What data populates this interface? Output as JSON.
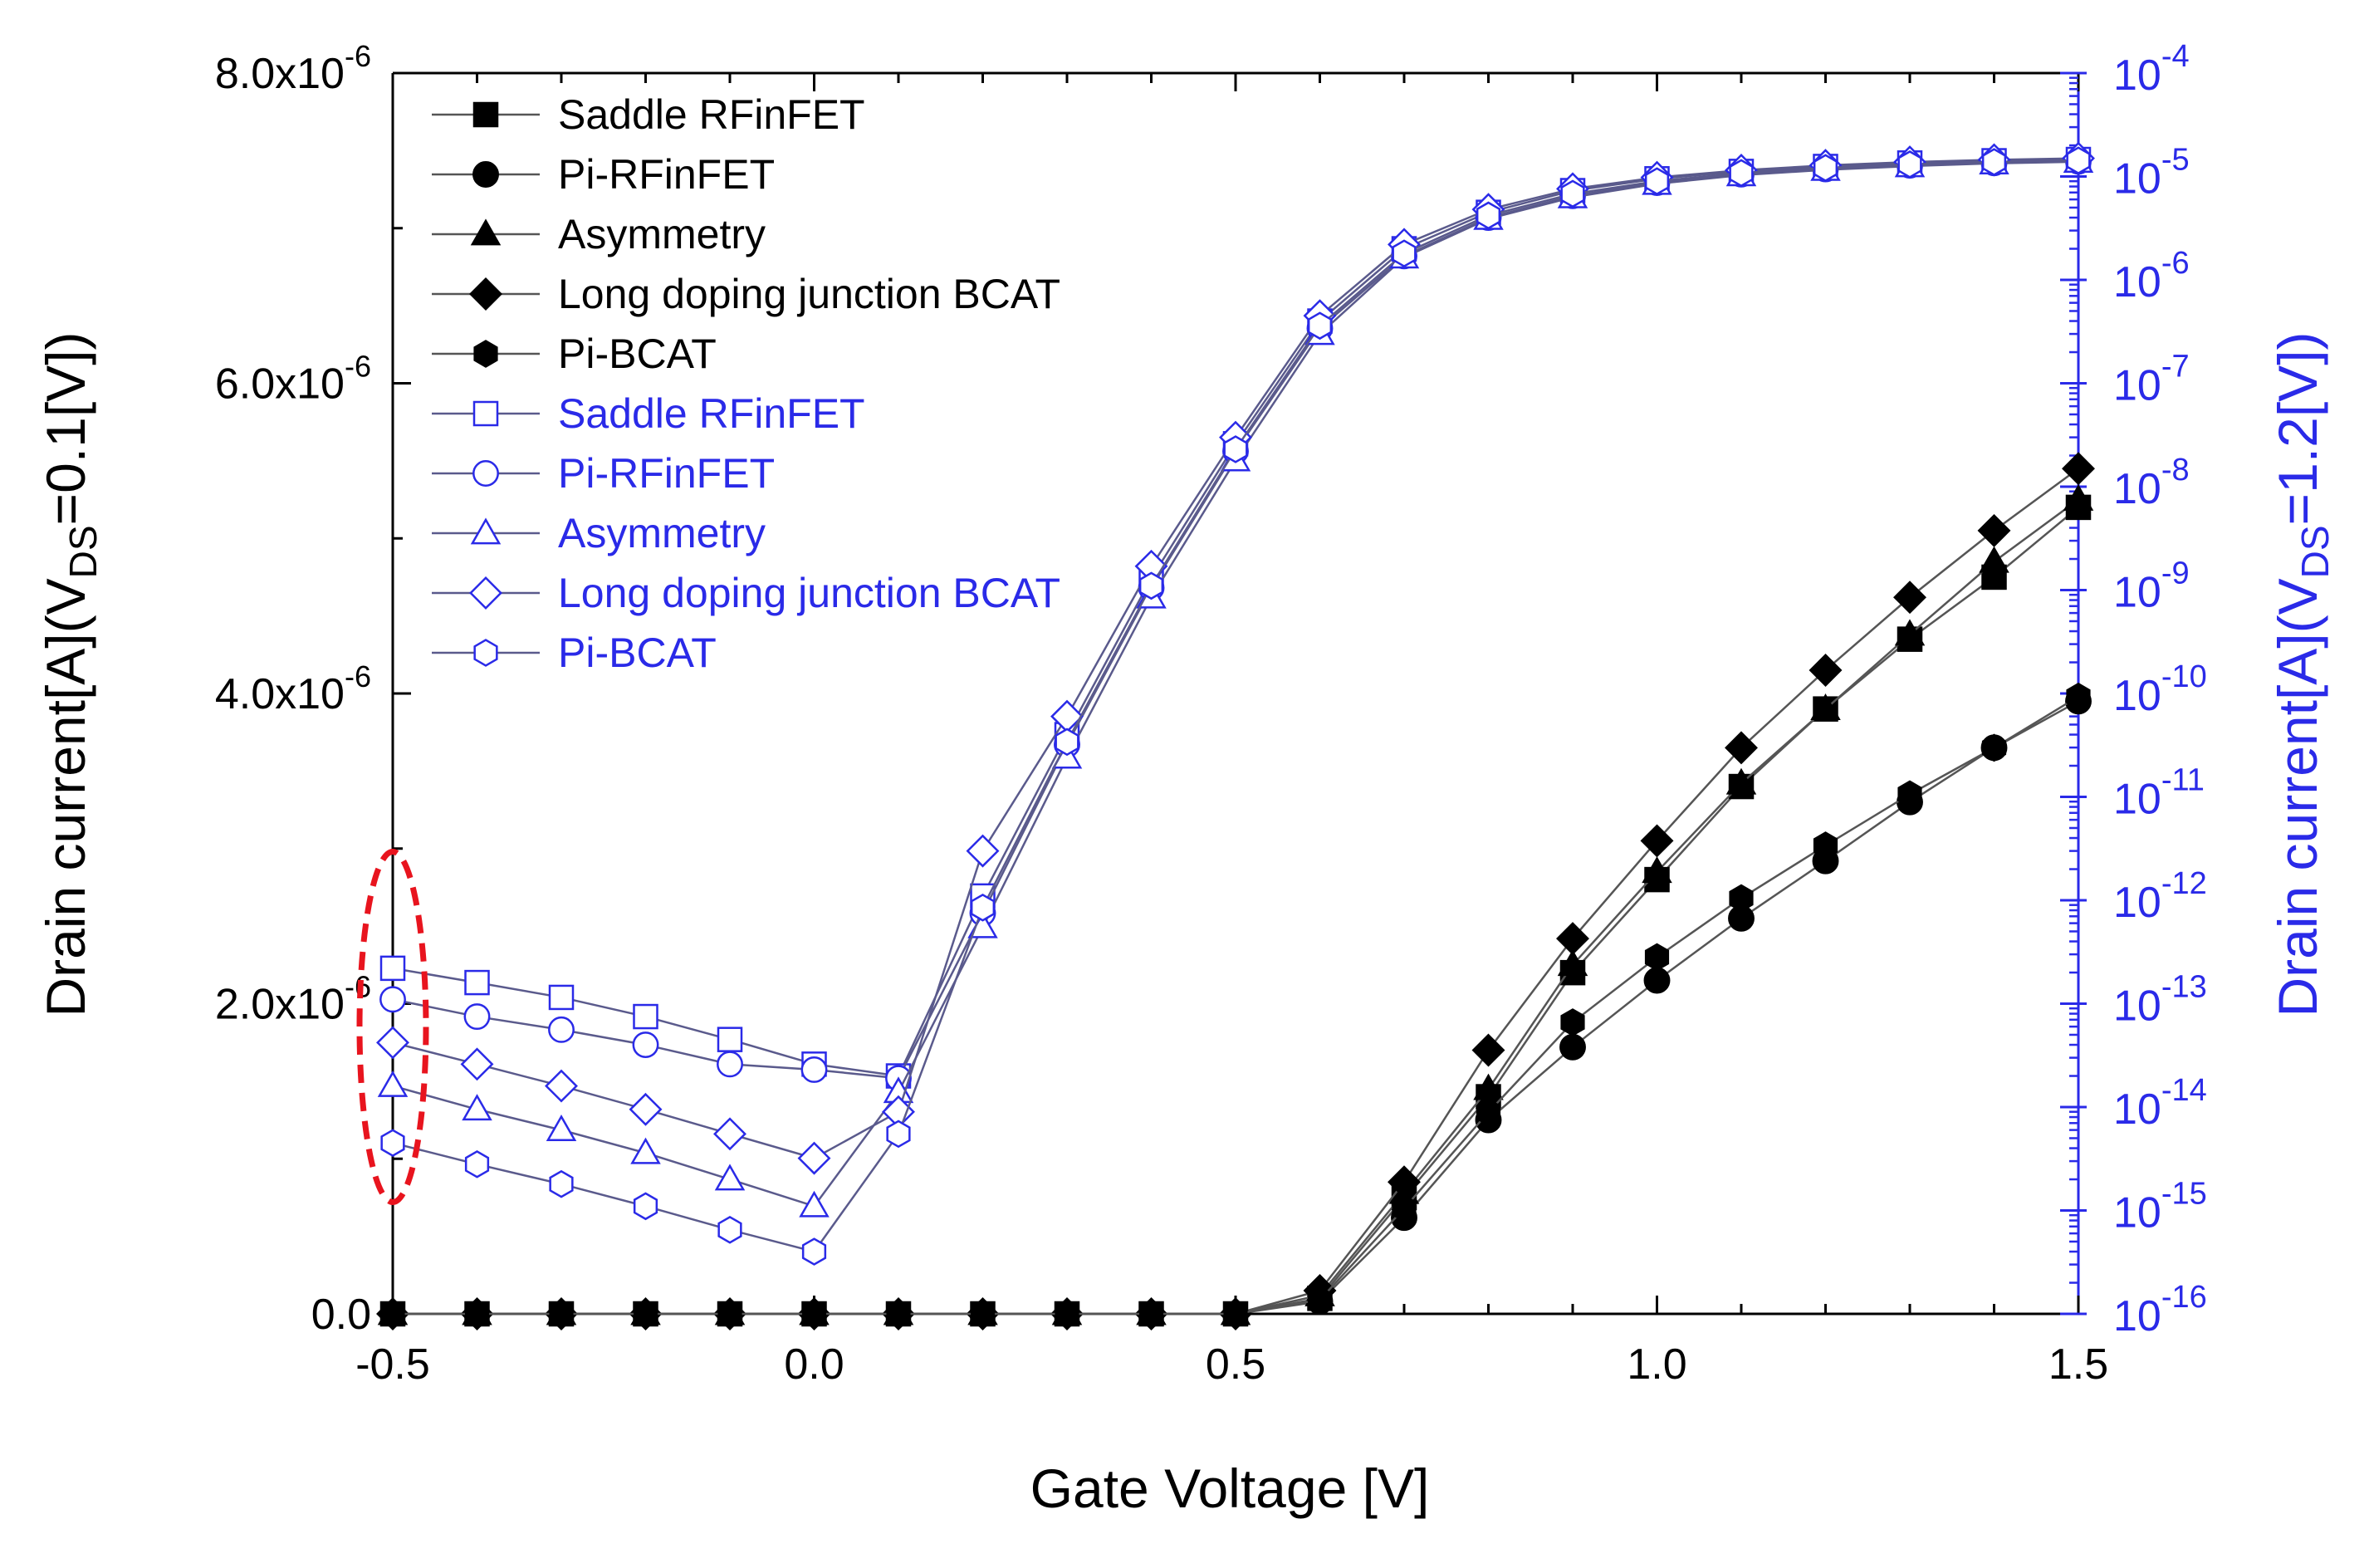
{
  "chart_data": {
    "type": "line",
    "xlabel": "Gate Voltage [V]",
    "ylabel_left": {
      "main": "Drain current[A](V",
      "sub": "DS",
      "tail": "=0.1[V])"
    },
    "ylabel_right": {
      "main": "Drain current[A](V",
      "sub": "DS",
      "tail": "=1.2[V])"
    },
    "x_range": [
      -0.5,
      1.5
    ],
    "x_ticks": [
      {
        "value": -0.5,
        "label": "-0.5"
      },
      {
        "value": 0.0,
        "label": "0.0"
      },
      {
        "value": 0.5,
        "label": "0.5"
      },
      {
        "value": 1.0,
        "label": "1.0"
      },
      {
        "value": 1.5,
        "label": "1.5"
      }
    ],
    "y_left_range": [
      0,
      8e-06
    ],
    "y_left_ticks": [
      {
        "value": 0,
        "base": "0.0",
        "exp": ""
      },
      {
        "value": 2e-06,
        "base": "2.0x10",
        "exp": "-6"
      },
      {
        "value": 4e-06,
        "base": "4.0x10",
        "exp": "-6"
      },
      {
        "value": 6e-06,
        "base": "6.0x10",
        "exp": "-6"
      },
      {
        "value": 8e-06,
        "base": "8.0x10",
        "exp": "-6"
      }
    ],
    "y_right_scale": "log",
    "y_right_range": [
      1e-16,
      0.0001
    ],
    "y_right_ticks": [
      {
        "exp": -16,
        "base": "10",
        "label": "-16"
      },
      {
        "exp": -15,
        "base": "10",
        "label": "-15"
      },
      {
        "exp": -14,
        "base": "10",
        "label": "-14"
      },
      {
        "exp": -13,
        "base": "10",
        "label": "-13"
      },
      {
        "exp": -12,
        "base": "10",
        "label": "-12"
      },
      {
        "exp": -11,
        "base": "10",
        "label": "-11"
      },
      {
        "exp": -10,
        "base": "10",
        "label": "-10"
      },
      {
        "exp": -9,
        "base": "10",
        "label": "-9"
      },
      {
        "exp": -8,
        "base": "10",
        "label": "-8"
      },
      {
        "exp": -7,
        "base": "10",
        "label": "-7"
      },
      {
        "exp": -6,
        "base": "10",
        "label": "-6"
      },
      {
        "exp": -5,
        "base": "10",
        "label": "-5"
      },
      {
        "exp": -4,
        "base": "10",
        "label": "-4"
      }
    ],
    "grid": false,
    "legend_position": "top-left",
    "colors": {
      "linear": "#000000",
      "log": "#2a2ae8",
      "line": "#555555",
      "annotation": "#e8141e",
      "right_axis": "#2a2ae8"
    },
    "annotation": {
      "shape": "dashed-ellipse",
      "x": -0.5,
      "y_left_range": [
        7.2e-07,
        2.98e-06
      ]
    },
    "x": [
      -0.5,
      -0.4,
      -0.3,
      -0.2,
      -0.1,
      0.0,
      0.1,
      0.2,
      0.3,
      0.4,
      0.5,
      0.6,
      0.7,
      0.8,
      0.9,
      1.0,
      1.1,
      1.2,
      1.3,
      1.4,
      1.5
    ],
    "series": [
      {
        "name": "Saddle RFinFET",
        "axis": "left",
        "marker": "square",
        "fill": "filled",
        "y": [
          0,
          0,
          0,
          0,
          0,
          0,
          0,
          0,
          0,
          0,
          0,
          1e-07,
          7.5e-07,
          1.4e-06,
          2.2e-06,
          2.8e-06,
          3.4e-06,
          3.9e-06,
          4.35e-06,
          4.75e-06,
          5.2e-06
        ]
      },
      {
        "name": "Pi-RFinFET",
        "axis": "left",
        "marker": "circle",
        "fill": "filled",
        "y": [
          0,
          0,
          0,
          0,
          0,
          0,
          0,
          0,
          0,
          0,
          0,
          8e-08,
          6.2e-07,
          1.25e-06,
          1.72e-06,
          2.15e-06,
          2.55e-06,
          2.92e-06,
          3.3e-06,
          3.65e-06,
          3.95e-06
        ]
      },
      {
        "name": "Asymmetry",
        "axis": "left",
        "marker": "triangle",
        "fill": "filled",
        "y": [
          0,
          0,
          0,
          0,
          0,
          0,
          0,
          0,
          0,
          0,
          0,
          1.2e-07,
          7.8e-07,
          1.45e-06,
          2.25e-06,
          2.85e-06,
          3.42e-06,
          3.9e-06,
          4.38e-06,
          4.85e-06,
          5.25e-06
        ]
      },
      {
        "name": "Long doping junction BCAT",
        "axis": "left",
        "marker": "diamond",
        "fill": "filled",
        "y": [
          0,
          0,
          0,
          0,
          0,
          0,
          0,
          0,
          0,
          0,
          0,
          1.5e-07,
          8.5e-07,
          1.7e-06,
          2.42e-06,
          3.05e-06,
          3.65e-06,
          4.15e-06,
          4.62e-06,
          5.05e-06,
          5.45e-06
        ]
      },
      {
        "name": "Pi-BCAT",
        "axis": "left",
        "marker": "hexagon",
        "fill": "filled",
        "y": [
          0,
          0,
          0,
          0,
          0,
          0,
          0,
          0,
          0,
          0,
          0,
          9e-08,
          6.8e-07,
          1.3e-06,
          1.88e-06,
          2.3e-06,
          2.68e-06,
          3.02e-06,
          3.35e-06,
          3.65e-06,
          3.98e-06
        ]
      },
      {
        "name": "Saddle RFinFET",
        "axis": "right",
        "marker": "square",
        "fill": "open",
        "y": [
          2.2e-13,
          1.6e-13,
          1.15e-13,
          7.5e-14,
          4.5e-14,
          2.6e-14,
          2e-14,
          1.1e-12,
          4e-11,
          1.3e-09,
          2.6e-08,
          4e-07,
          2e-06,
          4.5e-06,
          7.3e-06,
          9.5e-06,
          1.12e-05,
          1.25e-05,
          1.35e-05,
          1.42e-05,
          1.46e-05
        ]
      },
      {
        "name": "Pi-RFinFET",
        "axis": "right",
        "marker": "circle",
        "fill": "open",
        "y": [
          1.1e-13,
          7.5e-14,
          5.6e-14,
          4e-14,
          2.6e-14,
          2.3e-14,
          1.9e-14,
          7.5e-13,
          3.2e-11,
          1.05e-09,
          2.2e-08,
          3.4e-07,
          1.7e-06,
          4e-06,
          6.5e-06,
          8.7e-06,
          1.05e-05,
          1.18e-05,
          1.28e-05,
          1.35e-05,
          1.4e-05
        ]
      },
      {
        "name": "Asymmetry",
        "axis": "right",
        "marker": "triangle",
        "fill": "open",
        "y": [
          1.6e-14,
          9.5e-15,
          6e-15,
          3.6e-15,
          2e-15,
          1.1e-15,
          1.4e-14,
          5.5e-13,
          2.4e-11,
          8.5e-10,
          1.8e-08,
          3e-07,
          1.65e-06,
          3.9e-06,
          6.3e-06,
          8.5e-06,
          1.03e-05,
          1.16e-05,
          1.26e-05,
          1.34e-05,
          1.39e-05
        ]
      },
      {
        "name": "Long doping junction BCAT",
        "axis": "right",
        "marker": "diamond",
        "fill": "open",
        "y": [
          4.2e-14,
          2.6e-14,
          1.6e-14,
          9.5e-15,
          5.5e-15,
          3.2e-15,
          9e-15,
          3e-12,
          6e-11,
          1.7e-09,
          3e-08,
          4.5e-07,
          2.2e-06,
          4.8e-06,
          7.6e-06,
          9.8e-06,
          1.15e-05,
          1.28e-05,
          1.38e-05,
          1.45e-05,
          1.5e-05
        ]
      },
      {
        "name": "Pi-BCAT",
        "axis": "right",
        "marker": "hexagon",
        "fill": "open",
        "y": [
          4.5e-15,
          2.8e-15,
          1.8e-15,
          1.1e-15,
          6.5e-16,
          4e-16,
          5.5e-15,
          8.5e-13,
          3.4e-11,
          1.1e-09,
          2.3e-08,
          3.6e-07,
          1.8e-06,
          4.2e-06,
          6.8e-06,
          9e-06,
          1.08e-05,
          1.21e-05,
          1.31e-05,
          1.38e-05,
          1.43e-05
        ]
      }
    ]
  }
}
